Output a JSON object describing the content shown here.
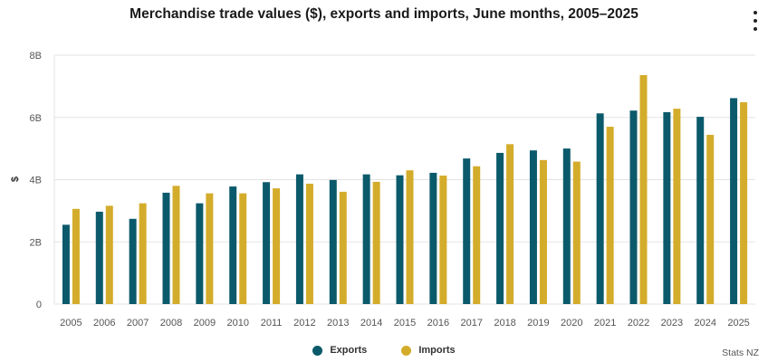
{
  "chart_data": {
    "type": "bar",
    "title": "Merchandise trade values ($), exports and imports, June months, 2005–2025",
    "xlabel": "",
    "ylabel": "$",
    "ylim": [
      0,
      8
    ],
    "yticks": [
      0,
      2,
      4,
      6,
      8
    ],
    "ytick_labels": [
      "0",
      "2B",
      "4B",
      "6B",
      "8B"
    ],
    "grid": true,
    "categories": [
      "2005",
      "2006",
      "2007",
      "2008",
      "2009",
      "2010",
      "2011",
      "2012",
      "2013",
      "2014",
      "2015",
      "2016",
      "2017",
      "2018",
      "2019",
      "2020",
      "2021",
      "2022",
      "2023",
      "2024",
      "2025"
    ],
    "series": [
      {
        "name": "Exports",
        "color": "#0b5a6b",
        "values": [
          2.55,
          2.97,
          2.74,
          3.58,
          3.24,
          3.78,
          3.92,
          4.17,
          3.99,
          4.17,
          4.14,
          4.22,
          4.68,
          4.86,
          4.94,
          5.0,
          6.13,
          6.22,
          6.17,
          6.02,
          6.62
        ]
      },
      {
        "name": "Imports",
        "color": "#d4ac2b",
        "values": [
          3.06,
          3.16,
          3.24,
          3.8,
          3.56,
          3.56,
          3.72,
          3.87,
          3.61,
          3.93,
          4.3,
          4.13,
          4.43,
          5.14,
          4.63,
          4.58,
          5.7,
          7.36,
          6.28,
          5.44,
          6.49
        ]
      }
    ],
    "legend": "bottom-center"
  },
  "credit": "Stats NZ",
  "menu_icon": "kebab-menu-icon"
}
